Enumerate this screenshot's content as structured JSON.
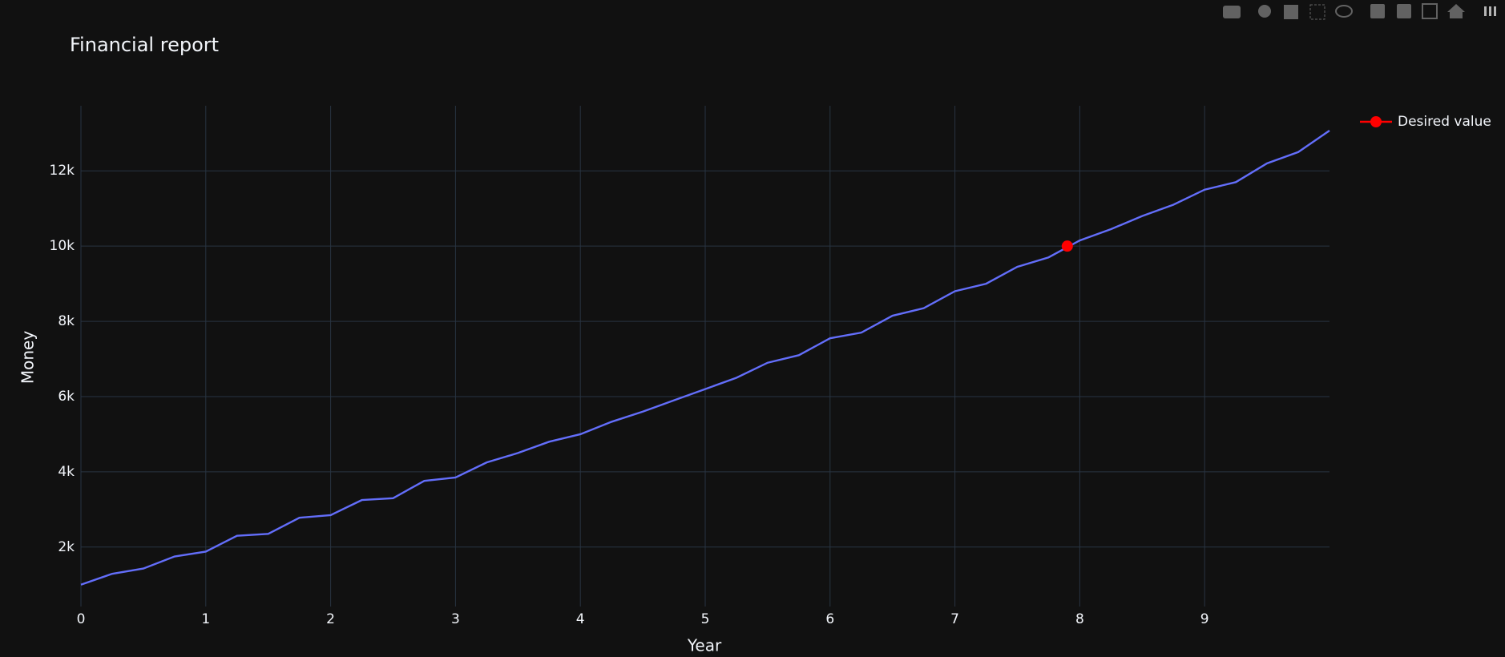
{
  "chart_data": {
    "type": "line",
    "title": "Financial report",
    "x_label": "Year",
    "y_label": "Money",
    "xlim": [
      0,
      10
    ],
    "ylim": [
      420,
      13730
    ],
    "xticks": [
      0,
      1,
      2,
      3,
      4,
      5,
      6,
      7,
      8,
      9
    ],
    "yticks": [
      {
        "value": 2000,
        "label": "2k"
      },
      {
        "value": 4000,
        "label": "4k"
      },
      {
        "value": 6000,
        "label": "6k"
      },
      {
        "value": 8000,
        "label": "8k"
      },
      {
        "value": 10000,
        "label": "10k"
      },
      {
        "value": 12000,
        "label": "12k"
      }
    ],
    "grid": true,
    "legend": "right",
    "series": [
      {
        "color": "#636efa",
        "x": [
          0,
          0.25,
          0.5,
          0.75,
          1,
          1.25,
          1.5,
          1.75,
          2,
          2.25,
          2.5,
          2.75,
          3,
          3.25,
          3.5,
          3.75,
          4,
          4.25,
          4.5,
          4.75,
          5,
          5.25,
          5.5,
          5.75,
          6,
          6.25,
          6.5,
          6.75,
          7,
          7.25,
          7.5,
          7.75,
          8,
          8.25,
          8.5,
          8.75,
          9,
          9.25,
          9.5,
          9.75,
          10
        ],
        "values": [
          1000,
          1290,
          1430,
          1750,
          1880,
          2300,
          2350,
          2780,
          2850,
          3250,
          3300,
          3760,
          3850,
          4250,
          4500,
          4800,
          5000,
          5330,
          5600,
          5900,
          6200,
          6500,
          6900,
          7100,
          7550,
          7700,
          8150,
          8350,
          8800,
          9000,
          9450,
          9700,
          10150,
          10450,
          10800,
          11100,
          11500,
          11700,
          12200,
          12500,
          13070
        ]
      },
      {
        "name": "Desired value",
        "color": "#ff0000",
        "marker": true,
        "x": [
          7.9
        ],
        "values": [
          10000
        ]
      }
    ]
  }
}
